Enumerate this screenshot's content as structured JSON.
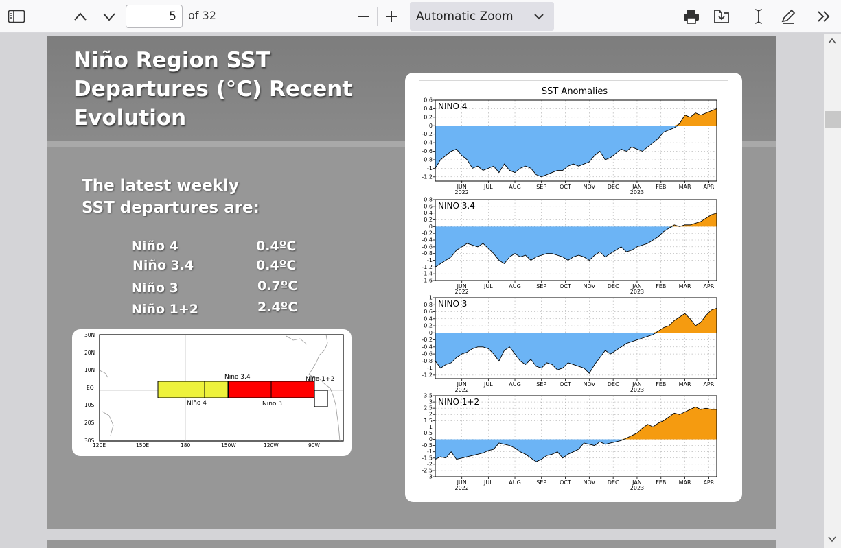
{
  "toolbar": {
    "page_number": "5",
    "page_total": "of 32",
    "zoom": "Automatic Zoom"
  },
  "slide": {
    "title_lines": [
      "Niño Region SST",
      "Departures (°C) Recent",
      "Evolution"
    ],
    "intro_lines": [
      "The latest weekly",
      "SST departures are:"
    ],
    "regions": [
      {
        "name": "Niño 4",
        "value": "0.4ºC"
      },
      {
        "name": "Niño 3.4",
        "value": "0.4ºC"
      },
      {
        "name": "Niño 3",
        "value": "0.7ºC"
      },
      {
        "name": "Niño 1+2",
        "value": "2.4ºC"
      }
    ]
  },
  "map": {
    "lat_labels": [
      "30N",
      "20N",
      "10N",
      "EQ",
      "10S",
      "20S",
      "30S"
    ],
    "lon_labels": [
      "120E",
      "150E",
      "180",
      "150W",
      "120W",
      "90W"
    ],
    "box_labels": {
      "n34": "Niño 3.4",
      "n12": "Niño 1+2",
      "n4": "Niño 4",
      "n3": "Niño 3"
    },
    "colors": {
      "nino4": "#eef23c",
      "nino3": "#ff0000",
      "nino12": "#ffffff"
    }
  },
  "chart_data": {
    "type": "area",
    "title": "SST Anomalies",
    "month_labels": [
      "JUN",
      "JUL",
      "AUG",
      "SEP",
      "OCT",
      "NOV",
      "DEC",
      "JAN",
      "FEB",
      "MAR",
      "APR"
    ],
    "year_labels": [
      "2022",
      "2023"
    ],
    "x": [
      0,
      1,
      2,
      3,
      4,
      5,
      6,
      7,
      8,
      9,
      10,
      11,
      12,
      13,
      14,
      15,
      16,
      17,
      18,
      19,
      20,
      21,
      22,
      23,
      24,
      25,
      26,
      27,
      28,
      29,
      30,
      31,
      32,
      33,
      34,
      35,
      36,
      37,
      38,
      39,
      40,
      41,
      42,
      43,
      44,
      45,
      46,
      47,
      48,
      49,
      50,
      51,
      52,
      53
    ],
    "colors": {
      "negative": "#6cb4f5",
      "positive": "#f59b10"
    },
    "panels": [
      {
        "name": "NINO 4",
        "ylim": [
          -1.3,
          0.6
        ],
        "yticks": [
          "0.6",
          "0.4",
          "0.2",
          "0",
          "-0.2",
          "-0.4",
          "-0.6",
          "-0.8",
          "-1",
          "-1.2"
        ],
        "ytick_values": [
          0.6,
          0.4,
          0.2,
          0,
          -0.2,
          -0.4,
          -0.6,
          -0.8,
          -1,
          -1.2
        ],
        "values": [
          -1.0,
          -0.8,
          -0.7,
          -0.6,
          -0.55,
          -0.7,
          -0.8,
          -1.0,
          -0.95,
          -1.05,
          -1.0,
          -0.95,
          -1.1,
          -0.9,
          -1.05,
          -1.1,
          -1.0,
          -0.95,
          -1.0,
          -1.15,
          -1.2,
          -1.15,
          -1.1,
          -1.05,
          -1.05,
          -0.95,
          -0.9,
          -0.95,
          -0.9,
          -0.85,
          -0.7,
          -0.6,
          -0.8,
          -0.75,
          -0.65,
          -0.55,
          -0.6,
          -0.5,
          -0.55,
          -0.6,
          -0.5,
          -0.4,
          -0.3,
          -0.15,
          -0.1,
          -0.05,
          0.05,
          0.25,
          0.2,
          0.3,
          0.25,
          0.3,
          0.35,
          0.4
        ]
      },
      {
        "name": "NINO 3.4",
        "ylim": [
          -1.6,
          0.8
        ],
        "yticks": [
          "0.8",
          "0.6",
          "0.4",
          "0.2",
          "0",
          "-0.2",
          "-0.4",
          "-0.6",
          "-0.8",
          "-1",
          "-1.2",
          "-1.4",
          "-1.6"
        ],
        "ytick_values": [
          0.8,
          0.6,
          0.4,
          0.2,
          0,
          -0.2,
          -0.4,
          -0.6,
          -0.8,
          -1,
          -1.2,
          -1.4,
          -1.6
        ],
        "values": [
          -1.2,
          -1.1,
          -1.0,
          -0.9,
          -0.7,
          -0.6,
          -0.5,
          -0.55,
          -0.6,
          -0.5,
          -0.65,
          -0.8,
          -1.0,
          -1.1,
          -0.9,
          -0.8,
          -0.9,
          -0.85,
          -1.0,
          -0.9,
          -0.85,
          -0.8,
          -0.8,
          -0.85,
          -0.9,
          -1.0,
          -0.9,
          -0.85,
          -0.9,
          -1.0,
          -0.85,
          -0.75,
          -0.9,
          -0.8,
          -0.7,
          -0.6,
          -0.75,
          -0.7,
          -0.6,
          -0.55,
          -0.5,
          -0.4,
          -0.3,
          -0.15,
          -0.05,
          0.05,
          0.0,
          0.05,
          0.05,
          0.1,
          0.15,
          0.25,
          0.35,
          0.4
        ]
      },
      {
        "name": "NINO 3",
        "ylim": [
          -1.3,
          1.0
        ],
        "yticks": [
          "1",
          "0.8",
          "0.6",
          "0.4",
          "0.2",
          "0",
          "-0.2",
          "-0.4",
          "-0.6",
          "-0.8",
          "-1",
          "-1.2"
        ],
        "ytick_values": [
          1,
          0.8,
          0.6,
          0.4,
          0.2,
          0,
          -0.2,
          -0.4,
          -0.6,
          -0.8,
          -1,
          -1.2
        ],
        "values": [
          -0.8,
          -1.0,
          -0.9,
          -0.85,
          -0.7,
          -0.6,
          -0.55,
          -0.45,
          -0.4,
          -0.4,
          -0.45,
          -0.6,
          -0.8,
          -0.5,
          -0.4,
          -0.6,
          -0.8,
          -0.9,
          -0.75,
          -0.95,
          -1.0,
          -0.85,
          -0.9,
          -1.05,
          -1.0,
          -0.85,
          -0.9,
          -0.95,
          -1.0,
          -1.15,
          -0.9,
          -0.7,
          -0.5,
          -0.6,
          -0.5,
          -0.4,
          -0.3,
          -0.25,
          -0.2,
          -0.15,
          -0.1,
          -0.05,
          0.05,
          0.15,
          0.2,
          0.35,
          0.45,
          0.55,
          0.4,
          0.2,
          0.3,
          0.5,
          0.65,
          0.7
        ]
      },
      {
        "name": "NINO 1+2",
        "ylim": [
          -3,
          3.5
        ],
        "yticks": [
          "3.5",
          "3",
          "2.5",
          "2",
          "1.5",
          "1",
          "0.5",
          "0",
          "-0.5",
          "-1",
          "-1.5",
          "-2",
          "-2.5",
          "-3"
        ],
        "ytick_values": [
          3.5,
          3,
          2.5,
          2,
          1.5,
          1,
          0.5,
          0,
          -0.5,
          -1,
          -1.5,
          -2,
          -2.5,
          -3
        ],
        "values": [
          -1.6,
          -1.4,
          -1.5,
          -1.0,
          -1.6,
          -1.5,
          -1.4,
          -1.3,
          -1.2,
          -1.1,
          -0.9,
          -0.8,
          -0.3,
          -0.4,
          -0.5,
          -0.7,
          -1.0,
          -1.2,
          -1.5,
          -1.8,
          -1.6,
          -1.3,
          -1.2,
          -1.0,
          -1.5,
          -1.2,
          -1.0,
          -0.8,
          -0.3,
          -0.4,
          -0.5,
          -0.2,
          -0.4,
          -0.3,
          -0.2,
          -0.1,
          0.1,
          0.3,
          0.5,
          0.9,
          1.2,
          1.0,
          1.3,
          1.5,
          1.8,
          2.1,
          2.0,
          2.2,
          2.4,
          2.6,
          2.4,
          2.5,
          2.4,
          2.4
        ]
      }
    ]
  }
}
